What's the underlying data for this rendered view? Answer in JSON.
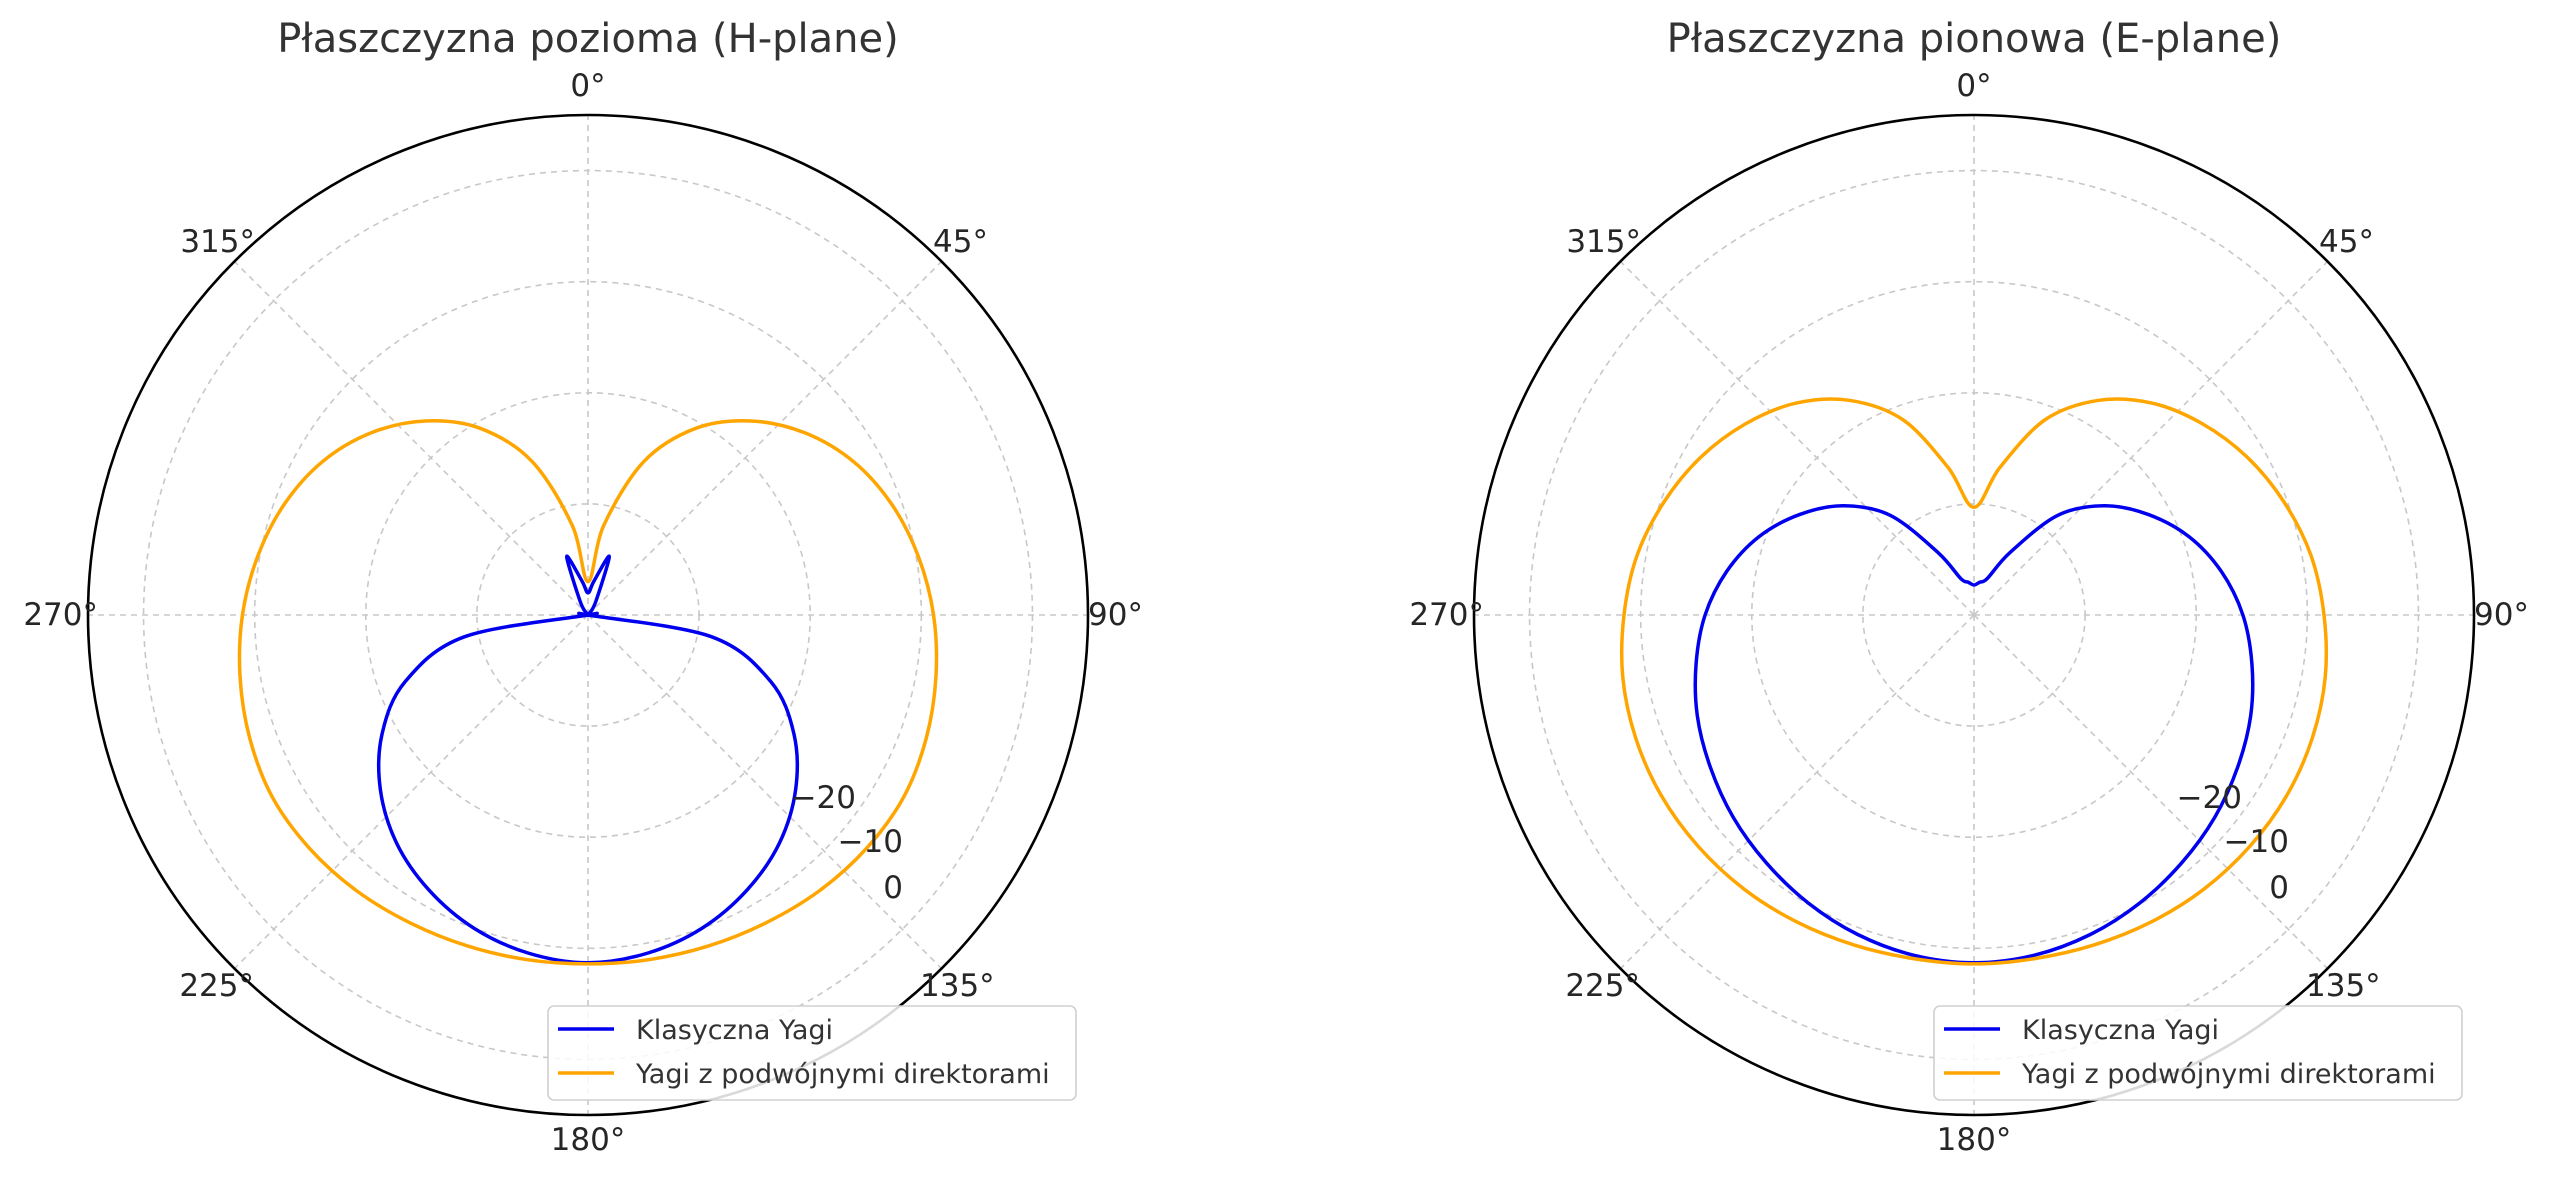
{
  "chart_data": [
    {
      "type": "polar-line",
      "title": "Płaszczyzna pozioma (H-plane)",
      "theta_zero": "top",
      "theta_direction": "clockwise",
      "theta_ticks": [
        "0°",
        "45°",
        "90°",
        "135°",
        "180°",
        "225°",
        "270°",
        "315°"
      ],
      "r_ticks": [
        "−20",
        "−10",
        "0"
      ],
      "rlim": [
        -40,
        5
      ],
      "grid": true,
      "legend_position": "lower-right",
      "series": [
        {
          "name": "Klasyczna Yagi",
          "color": "#0000ee",
          "theta_deg": [
            0,
            10,
            20,
            30,
            40,
            50,
            60,
            70,
            80,
            90,
            100,
            110,
            120,
            130,
            140,
            150,
            160,
            170,
            180,
            190,
            200,
            210,
            220,
            230,
            240,
            250,
            260,
            270,
            280,
            290,
            300,
            310,
            320,
            330,
            340,
            350,
            360
          ],
          "r_db": [
            -38.0,
            -36.9,
            -34.4,
            -38.6,
            -39.8,
            -40.0,
            -40.0,
            -40.0,
            -40.0,
            -40.0,
            -28.7,
            -22.5,
            -18.6,
            -15.6,
            -13.2,
            -11.4,
            -10.0,
            -9.1,
            -8.7,
            -9.1,
            -10.0,
            -11.4,
            -13.2,
            -15.6,
            -18.6,
            -22.5,
            -28.7,
            -40.0,
            -40.0,
            -40.0,
            -40.0,
            -40.0,
            -39.8,
            -38.6,
            -34.4,
            -36.9,
            -38.0
          ]
        },
        {
          "name": "Yagi z podwójnymi direktorami",
          "color": "#ffa500",
          "theta_deg": [
            0,
            10,
            20,
            30,
            40,
            50,
            60,
            70,
            80,
            90,
            100,
            110,
            120,
            130,
            140,
            150,
            160,
            170,
            180,
            190,
            200,
            210,
            220,
            230,
            240,
            250,
            260,
            270,
            280,
            290,
            300,
            310,
            320,
            330,
            340,
            350,
            360
          ],
          "r_db": [
            -37.0,
            -31.8,
            -25.3,
            -20.6,
            -17.2,
            -14.5,
            -12.4,
            -10.9,
            -9.8,
            -8.9,
            -8.2,
            -7.6,
            -7.2,
            -7.3,
            -7.6,
            -8.0,
            -8.3,
            -8.5,
            -8.6,
            -8.5,
            -8.3,
            -8.0,
            -7.6,
            -7.3,
            -7.2,
            -7.6,
            -8.2,
            -8.9,
            -9.8,
            -10.9,
            -12.4,
            -14.5,
            -17.2,
            -20.6,
            -25.3,
            -31.8,
            -37.0
          ]
        }
      ]
    },
    {
      "type": "polar-line",
      "title": "Płaszczyzna pionowa (E-plane)",
      "theta_zero": "top",
      "theta_direction": "clockwise",
      "theta_ticks": [
        "0°",
        "45°",
        "90°",
        "135°",
        "180°",
        "225°",
        "270°",
        "315°"
      ],
      "r_ticks": [
        "−20",
        "−10",
        "0"
      ],
      "rlim": [
        -40,
        5
      ],
      "grid": true,
      "legend_position": "lower-right",
      "series": [
        {
          "name": "Klasyczna Yagi",
          "color": "#0000ee",
          "theta_deg": [
            0,
            10,
            20,
            30,
            40,
            50,
            60,
            70,
            80,
            90,
            100,
            110,
            120,
            130,
            140,
            150,
            160,
            170,
            180,
            190,
            200,
            210,
            220,
            230,
            240,
            250,
            260,
            270,
            280,
            290,
            300,
            310,
            320,
            330,
            340,
            350,
            360
          ],
          "r_db": [
            -37.3,
            -37.0,
            -36.5,
            -33.5,
            -28.3,
            -24.7,
            -21.9,
            -19.4,
            -17.4,
            -15.8,
            -14.6,
            -13.5,
            -12.6,
            -11.7,
            -10.9,
            -10.1,
            -9.4,
            -8.9,
            -8.7,
            -8.9,
            -9.4,
            -10.1,
            -10.9,
            -11.7,
            -12.6,
            -13.5,
            -14.6,
            -15.8,
            -17.4,
            -19.4,
            -21.9,
            -24.7,
            -28.3,
            -33.5,
            -36.5,
            -37.0,
            -37.3
          ]
        },
        {
          "name": "Yagi z podwójnymi direktorami",
          "color": "#ffa500",
          "theta_deg": [
            0,
            10,
            20,
            30,
            40,
            50,
            60,
            70,
            80,
            90,
            100,
            110,
            120,
            130,
            140,
            150,
            160,
            170,
            180,
            190,
            200,
            210,
            220,
            230,
            240,
            250,
            260,
            270,
            280,
            290,
            300,
            310,
            320,
            330,
            340,
            350,
            360
          ],
          "r_db": [
            -30.3,
            -26.5,
            -21.3,
            -17.7,
            -15.1,
            -13.2,
            -11.6,
            -10.3,
            -9.2,
            -8.5,
            -7.9,
            -7.6,
            -7.5,
            -7.6,
            -7.8,
            -8.1,
            -8.4,
            -8.6,
            -8.6,
            -8.6,
            -8.4,
            -8.1,
            -7.8,
            -7.6,
            -7.5,
            -7.6,
            -7.9,
            -8.5,
            -9.2,
            -10.3,
            -11.6,
            -13.2,
            -15.1,
            -17.7,
            -21.3,
            -26.5,
            -30.3
          ]
        }
      ]
    }
  ]
}
